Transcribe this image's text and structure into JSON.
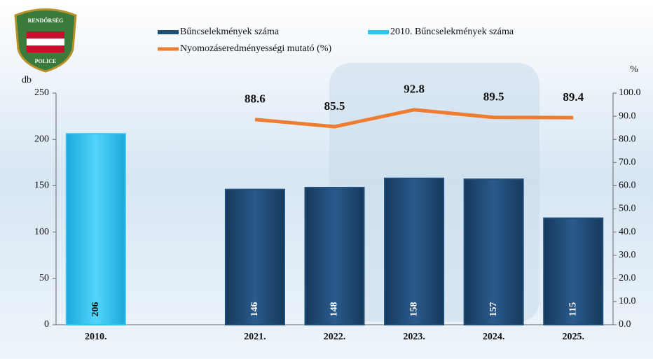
{
  "logo": {
    "top": "RENDŐRSÉG",
    "bottom": "POLICE"
  },
  "chart_data": {
    "type": "bar",
    "y_label": "db",
    "y2_label": "%",
    "categories": [
      "2010.",
      null,
      "2021.",
      "2022.",
      "2023.",
      "2024.",
      "2025."
    ],
    "series": [
      {
        "name": "Bűncselekmények száma",
        "color": "#1f4e79",
        "values": [
          null,
          null,
          146,
          148,
          158,
          157,
          115
        ]
      },
      {
        "name": "2010. Bűncselekmények száma",
        "color": "#2ec4f2",
        "values": [
          206,
          null,
          null,
          null,
          null,
          null,
          null
        ]
      },
      {
        "name": "Nyomozáseredményességi mutató (%)",
        "color": "#ed7d31",
        "type": "line",
        "axis": "y2",
        "values": [
          null,
          null,
          88.6,
          85.5,
          92.8,
          89.5,
          89.4
        ]
      }
    ],
    "ylim": [
      0,
      250
    ],
    "yticks": [
      0,
      50,
      100,
      150,
      200,
      250
    ],
    "y2lim": [
      0,
      100
    ],
    "y2ticks": [
      {
        "value": 0,
        "label": "0.0"
      },
      {
        "value": 10,
        "label": "10.0"
      },
      {
        "value": 20,
        "label": "20.0"
      },
      {
        "value": 30,
        "label": "30.0"
      },
      {
        "value": 40,
        "label": "40.0"
      },
      {
        "value": 50,
        "label": "50.0"
      },
      {
        "value": 60,
        "label": "60.0"
      },
      {
        "value": 70,
        "label": "70.0"
      },
      {
        "value": 80,
        "label": "80.0"
      },
      {
        "value": 90,
        "label": "90.0"
      },
      {
        "value": 100,
        "label": "100.0"
      }
    ]
  }
}
